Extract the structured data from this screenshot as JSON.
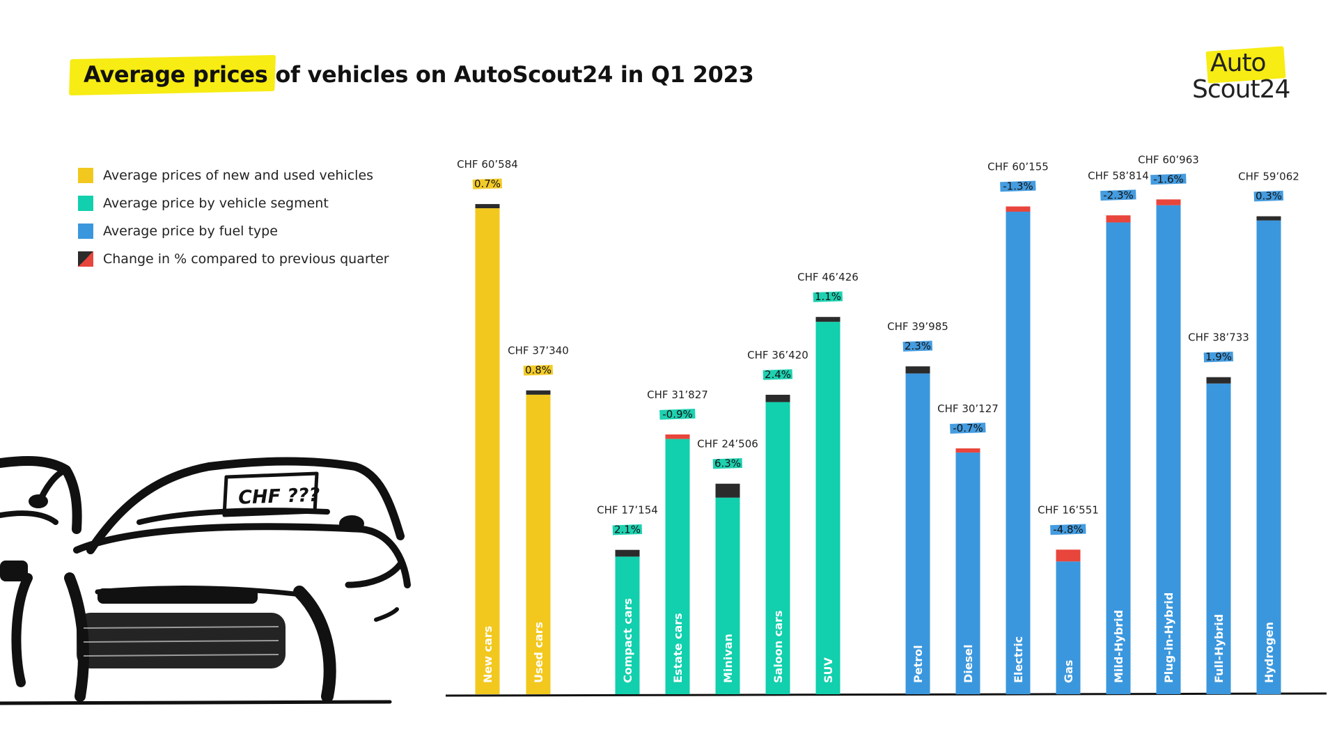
{
  "header": {
    "title_highlight": "Average prices",
    "title_rest": " of vehicles on AutoScout24 in Q1 2023"
  },
  "logo": {
    "line1": "Auto",
    "line2": "Scout24",
    "accent": "#f7ec13"
  },
  "legend": {
    "items": [
      {
        "label": "Average prices of new and used vehicles",
        "color": "#f2c81e"
      },
      {
        "label": "Average price by vehicle segment",
        "color": "#12cfad"
      },
      {
        "label": "Average price by fuel type",
        "color": "#3b97dd"
      },
      {
        "label": "Change in % compared to previous quarter",
        "color": "#2b2b2b"
      }
    ]
  },
  "illustration": {
    "sign_text": "CHF ???"
  },
  "colors": {
    "up": "#2b2b2b",
    "down": "#e8453c"
  },
  "chart_data": {
    "type": "bar",
    "ylim": [
      0,
      70000
    ],
    "categories": [
      "New cars",
      "Used cars",
      "Compact cars",
      "Estate cars",
      "Minivan",
      "Saloon cars",
      "SUV",
      "Petrol",
      "Diesel",
      "Electric",
      "Gas",
      "Mild-Hybrid",
      "Plug-in-Hybrid",
      "Full-Hybrid",
      "Hydrogen"
    ],
    "groups": [
      "new_used",
      "new_used",
      "segment",
      "segment",
      "segment",
      "segment",
      "segment",
      "fuel",
      "fuel",
      "fuel",
      "fuel",
      "fuel",
      "fuel",
      "fuel",
      "fuel"
    ],
    "values": [
      60584,
      37340,
      17154,
      31827,
      24506,
      36420,
      46426,
      39985,
      30127,
      60155,
      16551,
      58814,
      60963,
      38733,
      59062
    ],
    "value_labels": [
      "CHF 60’584",
      "CHF 37’340",
      "CHF 17’154",
      "CHF 31’827",
      "CHF 24’506",
      "CHF 36’420",
      "CHF 46’426",
      "CHF 39’985",
      "CHF 30’127",
      "CHF 60’155",
      "CHF 16’551",
      "CHF 58’814",
      "CHF 60’963",
      "CHF 38’733",
      "CHF 59’062"
    ],
    "change_pct": [
      0.7,
      0.8,
      2.1,
      -0.9,
      6.3,
      2.4,
      1.1,
      2.3,
      -0.7,
      -1.3,
      -4.8,
      -2.3,
      -1.6,
      1.9,
      0.3
    ],
    "change_labels": [
      "0.7%",
      "0.8%",
      "2.1%",
      "-0.9%",
      "6.3%",
      "2.4%",
      "1.1%",
      "2.3%",
      "-0.7%",
      "-1.3%",
      "-4.8%",
      "-2.3%",
      "-1.6%",
      "1.9%",
      "0.3%"
    ]
  }
}
